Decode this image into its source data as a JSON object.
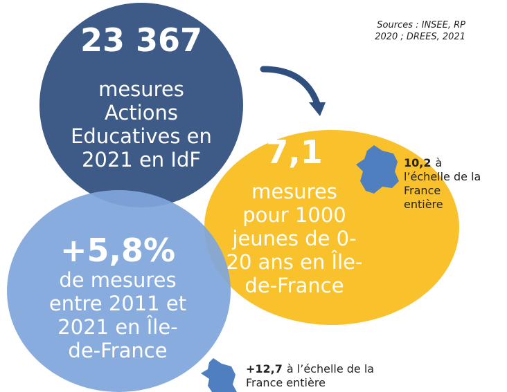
{
  "sources": [
    "Sources : INSEE, RP",
    "2020 ; DREES, 2021"
  ],
  "circles": [
    {
      "value": "23 367",
      "lines": [
        "mesures",
        "Actions",
        "Educatives en",
        "2021 en IdF"
      ]
    },
    {
      "value": "7,1",
      "lines": [
        "mesures",
        "pour 1000",
        "jeunes de 0-",
        "20 ans en Île-",
        "de-France"
      ]
    },
    {
      "value": "+5,8%",
      "lines": [
        "de mesures",
        "entre 2011 et",
        "2021 en Île-",
        "de-France"
      ]
    }
  ],
  "notes": [
    {
      "value": "10,2",
      "lines": [
        "à",
        "l’échelle de la",
        "France",
        "entière"
      ]
    },
    {
      "value": "+12,7",
      "lines": [
        "à l’échelle de la",
        "France entière"
      ]
    }
  ]
}
